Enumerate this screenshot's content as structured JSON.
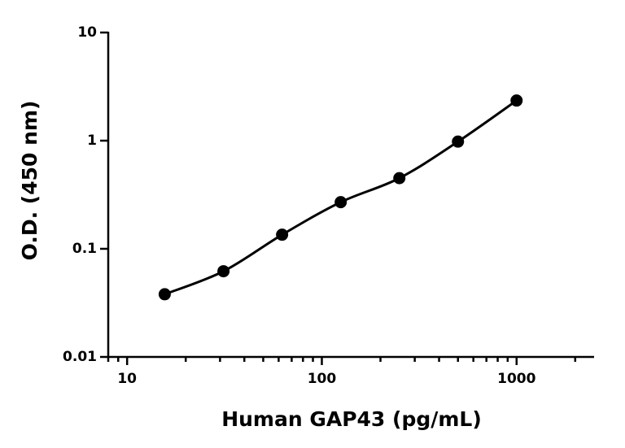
{
  "chart_data": {
    "type": "scatter",
    "x_label": "Human GAP43 (pg/mL)",
    "y_label": "O.D. (450 nm)",
    "x": [
      15.6,
      31.25,
      62.5,
      125,
      250,
      500,
      1000
    ],
    "values": [
      0.038,
      0.062,
      0.135,
      0.27,
      0.45,
      0.98,
      2.35
    ],
    "color": "#000000",
    "fit_line": true,
    "xlog": true,
    "ylog": true,
    "x_minor_ticks": true,
    "xlim": [
      8,
      2500
    ],
    "ylim": [
      0.01,
      10
    ],
    "xticks": [
      10,
      100,
      1000
    ],
    "yticks": [
      0.01,
      0.1,
      1,
      10
    ]
  }
}
